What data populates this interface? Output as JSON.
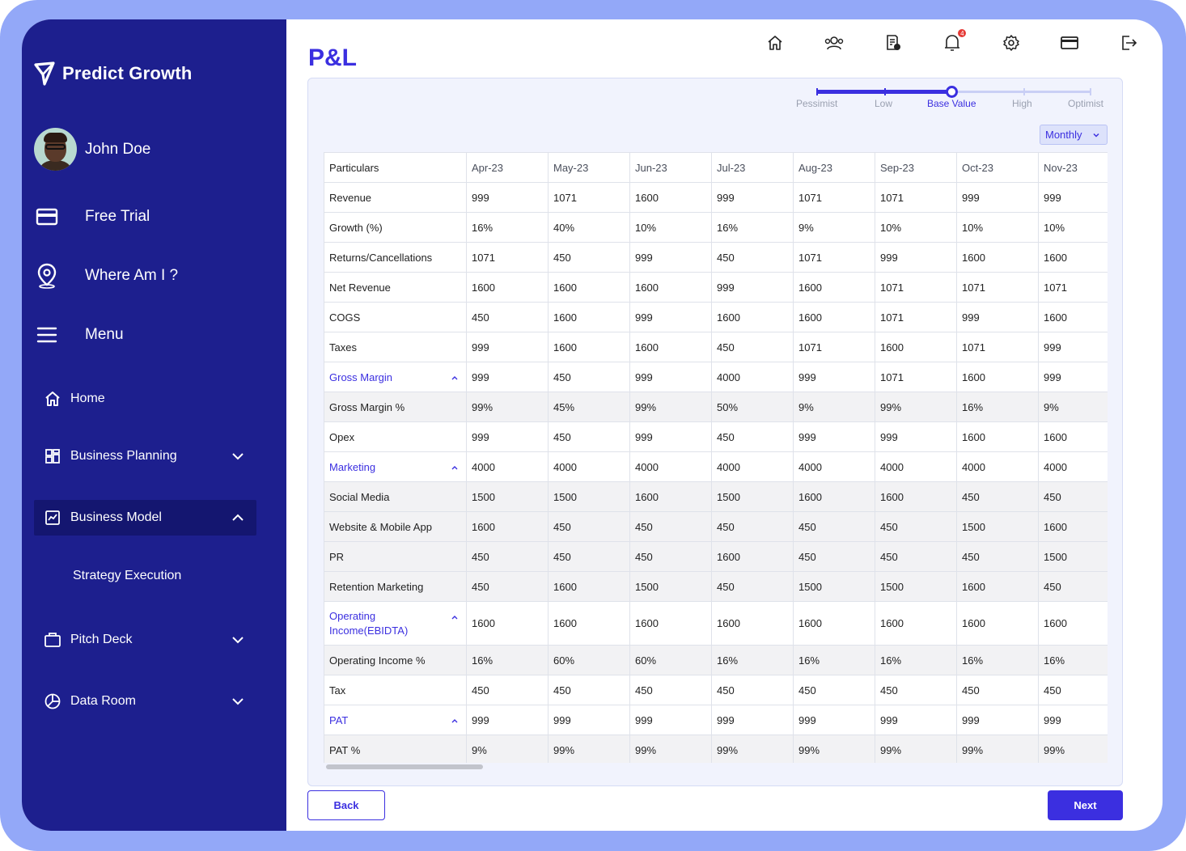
{
  "app": {
    "name": "Predict Growth"
  },
  "user": {
    "name": "John Doe"
  },
  "top_nav": [
    {
      "label": "Free Trial",
      "icon": "credit-card-icon"
    },
    {
      "label": "Where Am I ?",
      "icon": "location-pin-icon"
    },
    {
      "label": "Menu",
      "icon": "hamburger-icon"
    }
  ],
  "sidebar": {
    "items": [
      {
        "label": "Home",
        "icon": "home-icon"
      },
      {
        "label": "Business Planning",
        "icon": "grid-icon"
      },
      {
        "label": "Business Model",
        "icon": "chart-icon",
        "active": true
      },
      {
        "label": "Strategy Execution"
      },
      {
        "label": "Pitch Deck",
        "icon": "briefcase-icon"
      },
      {
        "label": "Data Room",
        "icon": "pie-icon"
      }
    ]
  },
  "header": {
    "title": "P&L",
    "notification_count": "4",
    "icons": [
      "home-icon",
      "users-icon",
      "report-icon",
      "bell-icon",
      "gear-icon",
      "card-icon",
      "logout-icon"
    ]
  },
  "scenario": {
    "labels": [
      "Pessimist",
      "Low",
      "Base Value",
      "High",
      "Optimist"
    ],
    "selected": "Base Value",
    "selected_index": 2
  },
  "period": {
    "selected": "Monthly"
  },
  "table": {
    "headers": [
      "Particulars",
      "Apr-23",
      "May-23",
      "Jun-23",
      "Jul-23",
      "Aug-23",
      "Sep-23",
      "Oct-23",
      "Nov-23"
    ],
    "rows": [
      {
        "label": "Revenue",
        "values": [
          "999",
          "1071",
          "1600",
          "999",
          "1071",
          "1071",
          "999",
          "999"
        ]
      },
      {
        "label": "Growth (%)",
        "values": [
          "16%",
          "40%",
          "10%",
          "16%",
          "9%",
          "10%",
          "10%",
          "10%"
        ]
      },
      {
        "label": "Returns/Cancellations",
        "values": [
          "1071",
          "450",
          "999",
          "450",
          "1071",
          "999",
          "1600",
          "1600"
        ]
      },
      {
        "label": "Net Revenue",
        "values": [
          "1600",
          "1600",
          "1600",
          "999",
          "1600",
          "1071",
          "1071",
          "1071"
        ]
      },
      {
        "label": "COGS",
        "values": [
          "450",
          "1600",
          "999",
          "1600",
          "1600",
          "1071",
          "999",
          "1600"
        ]
      },
      {
        "label": "Taxes",
        "values": [
          "999",
          "1600",
          "1600",
          "450",
          "1071",
          "1600",
          "1071",
          "999"
        ]
      },
      {
        "label": "Gross Margin",
        "values": [
          "999",
          "450",
          "999",
          "4000",
          "999",
          "1071",
          "1600",
          "999"
        ],
        "group": true
      },
      {
        "label": "Gross Margin %",
        "values": [
          "99%",
          "45%",
          "99%",
          "50%",
          "9%",
          "99%",
          "16%",
          "9%"
        ],
        "shade": true
      },
      {
        "label": "Opex",
        "values": [
          "999",
          "450",
          "999",
          "450",
          "999",
          "999",
          "1600",
          "1600"
        ]
      },
      {
        "label": "Marketing",
        "values": [
          "4000",
          "4000",
          "4000",
          "4000",
          "4000",
          "4000",
          "4000",
          "4000"
        ],
        "group": true
      },
      {
        "label": "Social Media",
        "values": [
          "1500",
          "1500",
          "1600",
          "1500",
          "1600",
          "1600",
          "450",
          "450"
        ],
        "shade": true
      },
      {
        "label": "Website & Mobile App",
        "values": [
          "1600",
          "450",
          "450",
          "450",
          "450",
          "450",
          "1500",
          "1600"
        ],
        "shade": true
      },
      {
        "label": "PR",
        "values": [
          "450",
          "450",
          "450",
          "1600",
          "450",
          "450",
          "450",
          "1500"
        ],
        "shade": true
      },
      {
        "label": "Retention Marketing",
        "values": [
          "450",
          "1600",
          "1500",
          "450",
          "1500",
          "1500",
          "1600",
          "450"
        ],
        "shade": true
      },
      {
        "label": "Operating Income(EBIDTA)",
        "values": [
          "1600",
          "1600",
          "1600",
          "1600",
          "1600",
          "1600",
          "1600",
          "1600"
        ],
        "group": true,
        "tall": true
      },
      {
        "label": "Operating Income %",
        "values": [
          "16%",
          "60%",
          "60%",
          "16%",
          "16%",
          "16%",
          "16%",
          "16%"
        ],
        "shade": true
      },
      {
        "label": "Tax",
        "values": [
          "450",
          "450",
          "450",
          "450",
          "450",
          "450",
          "450",
          "450"
        ]
      },
      {
        "label": "PAT",
        "values": [
          "999",
          "999",
          "999",
          "999",
          "999",
          "999",
          "999",
          "999"
        ],
        "group": true
      },
      {
        "label": "PAT %",
        "values": [
          "9%",
          "99%",
          "99%",
          "99%",
          "99%",
          "99%",
          "99%",
          "99%"
        ],
        "shade": true
      }
    ]
  },
  "actions": {
    "back": "Back",
    "next": "Next"
  },
  "colors": {
    "sidebar": "#1d1f8e",
    "accent": "#3b2fe0",
    "frame": "#93a8f8"
  }
}
